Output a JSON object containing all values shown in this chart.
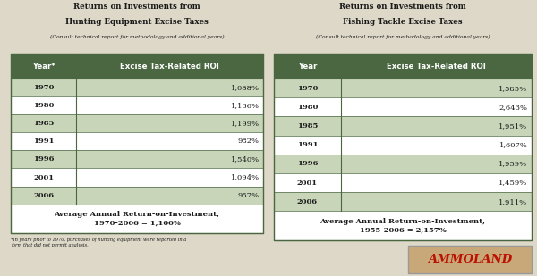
{
  "left_title1": "Returns on Investments from",
  "left_title2": "Hunting Equipment Excise Taxes",
  "left_subtitle": "(Consult technical report for methodology and additional years)",
  "left_col1_header": "Year*",
  "left_col2_header": "Excise Tax-Related ROI",
  "left_years": [
    "1970",
    "1980",
    "1985",
    "1991",
    "1996",
    "2001",
    "2006"
  ],
  "left_values": [
    "1,088%",
    "1,136%",
    "1,199%",
    "982%",
    "1,540%",
    "1,094%",
    "957%"
  ],
  "left_avg": "Average Annual Return-on-Investment,\n1970-2006 = 1,100%",
  "left_footnote": "*In years prior to 1970, purchases of hunting equipment were reported in a\nform that did not permit analysis.",
  "right_title1": "Returns on Investments from",
  "right_title2": "Fishing Tackle Excise Taxes",
  "right_subtitle": "(Consult technical report for methodology and additional years)",
  "right_col1_header": "Year",
  "right_col2_header": "Excise Tax-Related ROI",
  "right_years": [
    "1970",
    "1980",
    "1985",
    "1991",
    "1996",
    "2001",
    "2006"
  ],
  "right_values": [
    "1,585%",
    "2,643%",
    "1,951%",
    "1,607%",
    "1,959%",
    "1,459%",
    "1,911%"
  ],
  "right_avg": "Average Annual Return-on-Investment,\n1955-2006 = 2,157%",
  "header_bg": "#4a6741",
  "header_fg": "#ffffff",
  "shaded_row_bg": "#c8d5b9",
  "plain_row_bg": "#ffffff",
  "avg_row_bg": "#ffffff",
  "border_color": "#4a6741",
  "text_color": "#1a1a1a",
  "title_color": "#1a1a1a",
  "bg_color": "#ddd8c8",
  "ammoland_red": "#bb1100",
  "ammoland_bg": "#c8a878"
}
